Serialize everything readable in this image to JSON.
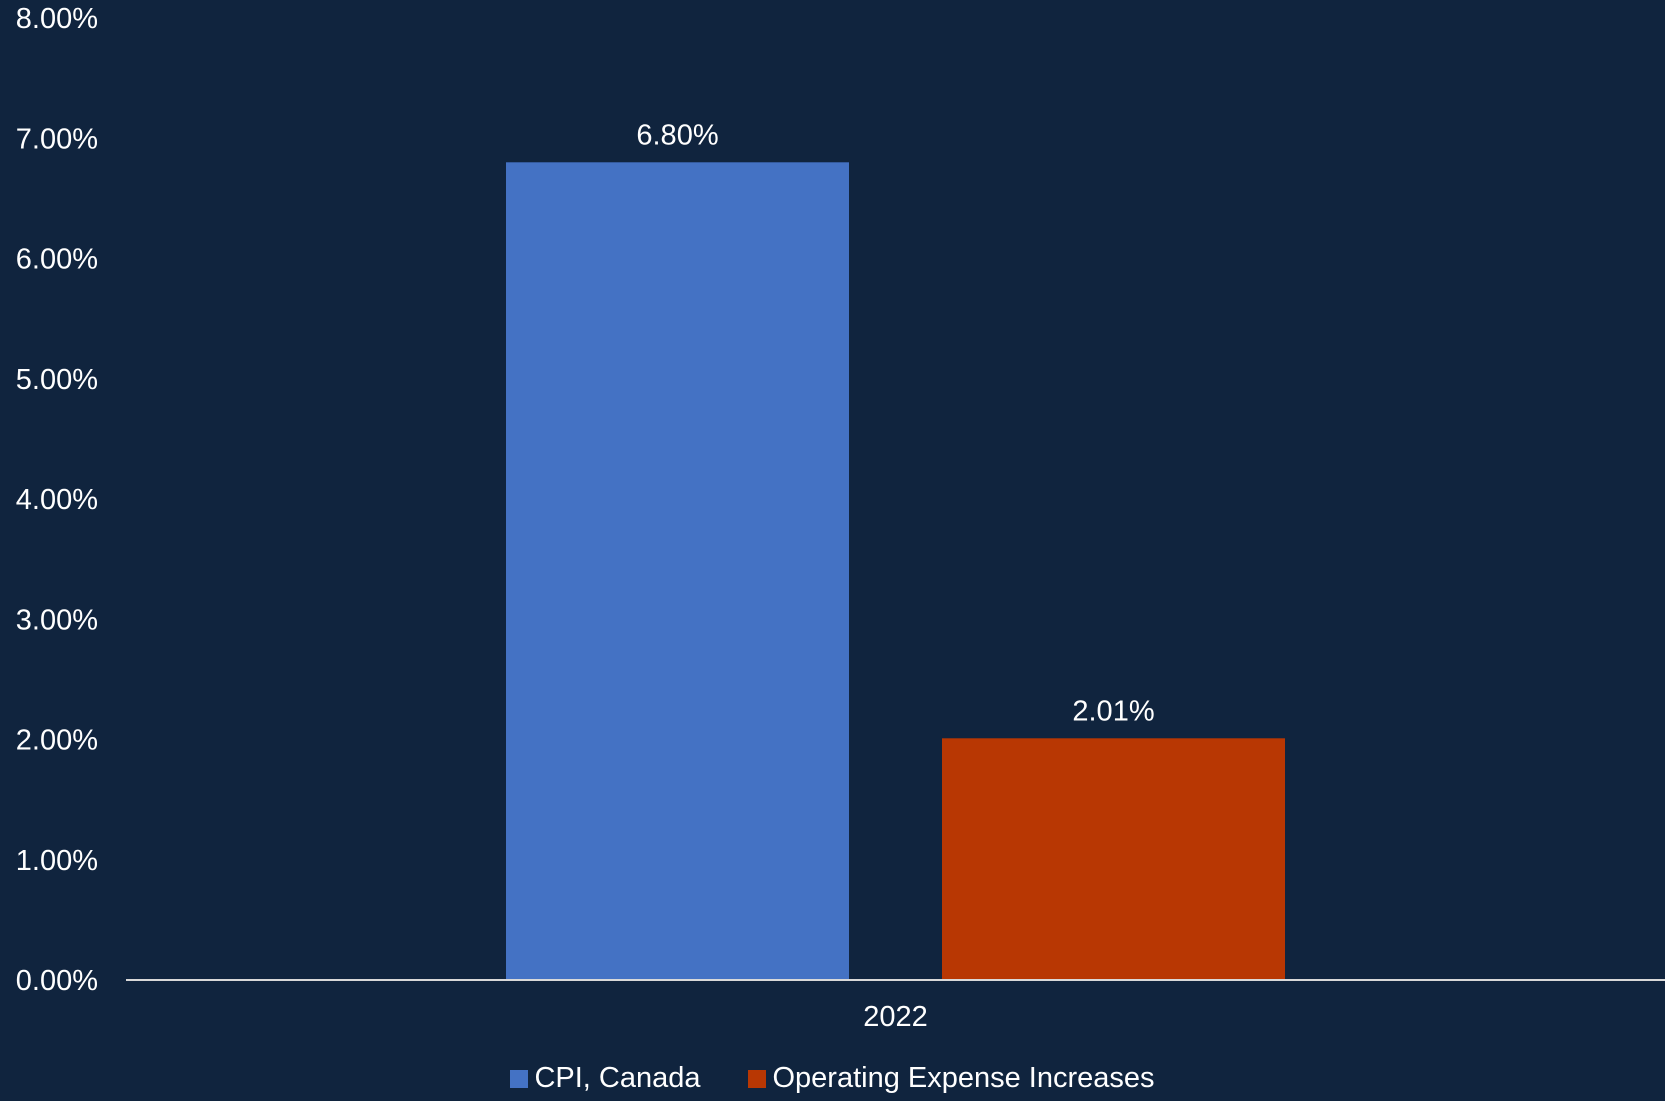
{
  "chart_data": {
    "type": "bar",
    "categories": [
      "2022"
    ],
    "series": [
      {
        "name": "CPI, Canada",
        "values": [
          6.8
        ],
        "labels": [
          "6.80%"
        ],
        "color": "#4472c4"
      },
      {
        "name": "Operating Expense Increases",
        "values": [
          2.01
        ],
        "labels": [
          "2.01%"
        ],
        "color": "#b83703"
      }
    ],
    "y_ticks": [
      0,
      1,
      2,
      3,
      4,
      5,
      6,
      7,
      8
    ],
    "y_tick_labels": [
      "0.00%",
      "1.00%",
      "2.00%",
      "3.00%",
      "4.00%",
      "5.00%",
      "6.00%",
      "7.00%",
      "8.00%"
    ],
    "ylim": [
      0,
      8
    ],
    "title": "",
    "xlabel": "",
    "ylabel": "",
    "grid": false,
    "legend_position": "bottom",
    "background_color": "#10243e",
    "axis_color": "#d9d9d9"
  }
}
